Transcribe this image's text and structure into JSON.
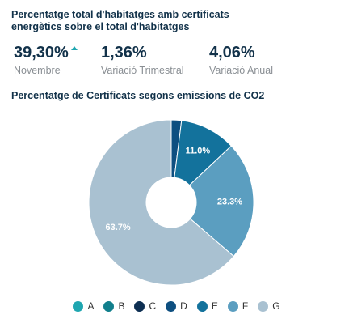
{
  "kpi": {
    "title": "Percentatge total d'habitatges amb certificats energètics sobre el total d'habitatges",
    "stats": [
      {
        "value": "39,30%",
        "label": "Novembre",
        "trend": "up"
      },
      {
        "value": "1,36%",
        "label": "Variació Trimestral"
      },
      {
        "value": "4,06%",
        "label": "Variació Anual"
      }
    ],
    "trend_color": "#1fa6b0"
  },
  "chart_data": {
    "type": "pie",
    "title": "Percentatge de Certificats segons emissions de CO2",
    "donut": true,
    "categories": [
      "A",
      "B",
      "C",
      "D",
      "E",
      "F",
      "G"
    ],
    "values": [
      0.0,
      0.0,
      0.0,
      2.0,
      11.0,
      23.3,
      63.7
    ],
    "data_labels": [
      "",
      "",
      "",
      "",
      "11.0%",
      "23.3%",
      "63.7%"
    ],
    "colors": [
      "#1fa6b0",
      "#117f8c",
      "#0d2f52",
      "#0e4f80",
      "#13729c",
      "#5b9ec0",
      "#a9c1d1"
    ],
    "legend_position": "bottom"
  }
}
